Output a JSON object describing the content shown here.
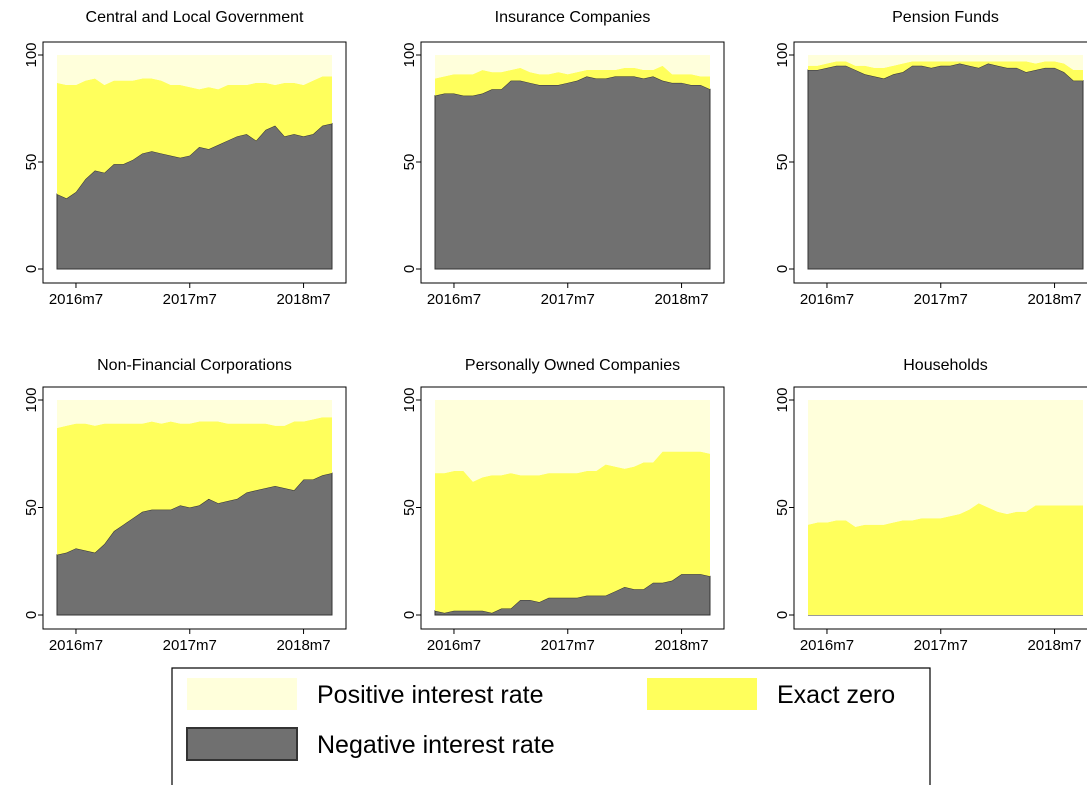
{
  "chart_data": [
    {
      "type": "stacked_area",
      "title": "Central and Local Government",
      "categories": [
        null,
        null,
        "2016m7",
        null,
        null,
        null,
        null,
        null,
        null,
        null,
        null,
        null,
        null,
        null,
        "2017m7",
        null,
        null,
        null,
        null,
        null,
        null,
        null,
        null,
        null,
        null,
        null,
        "2018m7",
        null,
        null,
        null
      ],
      "ylim": [
        0,
        100
      ],
      "yticks": [
        0,
        50,
        100
      ],
      "series": [
        {
          "name": "Negative interest rate",
          "color": "#707070",
          "values": [
            35,
            33,
            36,
            42,
            46,
            45,
            49,
            49,
            51,
            54,
            55,
            54,
            53,
            52,
            53,
            57,
            56,
            58,
            60,
            62,
            63,
            60,
            65,
            67,
            62,
            63,
            62,
            63,
            67,
            68
          ]
        },
        {
          "name": "Exact zero",
          "color": "#ffff5c",
          "values": [
            52,
            53,
            50,
            46,
            43,
            41,
            39,
            39,
            37,
            35,
            34,
            34,
            33,
            34,
            32,
            27,
            29,
            26,
            26,
            24,
            23,
            27,
            22,
            19,
            25,
            24,
            24,
            25,
            23,
            22
          ]
        },
        {
          "name": "Positive interest rate",
          "color": "#ffffdb",
          "values": [
            13,
            14,
            14,
            12,
            11,
            14,
            12,
            12,
            12,
            11,
            11,
            12,
            14,
            14,
            15,
            16,
            15,
            16,
            14,
            14,
            14,
            13,
            13,
            14,
            13,
            13,
            14,
            12,
            10,
            10
          ]
        }
      ]
    },
    {
      "type": "stacked_area",
      "title": "Insurance Companies",
      "categories": [
        null,
        null,
        "2016m7",
        null,
        null,
        null,
        null,
        null,
        null,
        null,
        null,
        null,
        null,
        null,
        "2017m7",
        null,
        null,
        null,
        null,
        null,
        null,
        null,
        null,
        null,
        null,
        null,
        "2018m7",
        null,
        null,
        null
      ],
      "ylim": [
        0,
        100
      ],
      "yticks": [
        0,
        50,
        100
      ],
      "series": [
        {
          "name": "Negative interest rate",
          "color": "#707070",
          "values": [
            81,
            82,
            82,
            81,
            81,
            82,
            84,
            84,
            88,
            88,
            87,
            86,
            86,
            86,
            87,
            88,
            90,
            89,
            89,
            90,
            90,
            90,
            89,
            90,
            88,
            87,
            87,
            86,
            86,
            84
          ]
        },
        {
          "name": "Exact zero",
          "color": "#ffff5c",
          "values": [
            8,
            8,
            9,
            10,
            10,
            11,
            8,
            8,
            5,
            6,
            5,
            5,
            5,
            6,
            4,
            4,
            3,
            4,
            4,
            3,
            4,
            4,
            4,
            3,
            7,
            4,
            4,
            5,
            4,
            6
          ]
        },
        {
          "name": "Positive interest rate",
          "color": "#ffffdb",
          "values": [
            11,
            10,
            9,
            9,
            9,
            7,
            8,
            8,
            7,
            6,
            8,
            9,
            9,
            8,
            9,
            8,
            7,
            7,
            7,
            7,
            6,
            6,
            7,
            7,
            5,
            9,
            9,
            9,
            10,
            10
          ]
        }
      ]
    },
    {
      "type": "stacked_area",
      "title": "Pension Funds",
      "categories": [
        null,
        null,
        "2016m7",
        null,
        null,
        null,
        null,
        null,
        null,
        null,
        null,
        null,
        null,
        null,
        "2017m7",
        null,
        null,
        null,
        null,
        null,
        null,
        null,
        null,
        null,
        null,
        null,
        "2018m7",
        null,
        null,
        null
      ],
      "ylim": [
        0,
        100
      ],
      "yticks": [
        0,
        50,
        100
      ],
      "series": [
        {
          "name": "Negative interest rate",
          "color": "#707070",
          "values": [
            93,
            93,
            94,
            95,
            95,
            93,
            91,
            90,
            89,
            91,
            92,
            95,
            95,
            94,
            95,
            95,
            96,
            95,
            94,
            96,
            95,
            94,
            94,
            92,
            93,
            94,
            94,
            92,
            88,
            88
          ]
        },
        {
          "name": "Exact zero",
          "color": "#ffff5c",
          "values": [
            2,
            2,
            2,
            2,
            2,
            2,
            4,
            4,
            5,
            4,
            4,
            2,
            2,
            3,
            2,
            2,
            1,
            2,
            3,
            1,
            2,
            3,
            3,
            5,
            3,
            3,
            3,
            4,
            5,
            5
          ]
        },
        {
          "name": "Positive interest rate",
          "color": "#ffffdb",
          "values": [
            5,
            5,
            4,
            3,
            3,
            5,
            5,
            6,
            6,
            5,
            4,
            3,
            3,
            3,
            3,
            3,
            3,
            3,
            3,
            3,
            3,
            3,
            3,
            3,
            4,
            3,
            3,
            4,
            7,
            7
          ]
        }
      ]
    },
    {
      "type": "stacked_area",
      "title": "Non-Financial Corporations",
      "categories": [
        null,
        null,
        "2016m7",
        null,
        null,
        null,
        null,
        null,
        null,
        null,
        null,
        null,
        null,
        null,
        "2017m7",
        null,
        null,
        null,
        null,
        null,
        null,
        null,
        null,
        null,
        null,
        null,
        "2018m7",
        null,
        null,
        null
      ],
      "ylim": [
        0,
        100
      ],
      "yticks": [
        0,
        50,
        100
      ],
      "series": [
        {
          "name": "Negative interest rate",
          "color": "#707070",
          "values": [
            28,
            29,
            31,
            30,
            29,
            33,
            39,
            42,
            45,
            48,
            49,
            49,
            49,
            51,
            50,
            51,
            54,
            52,
            53,
            54,
            57,
            58,
            59,
            60,
            59,
            58,
            63,
            63,
            65,
            66
          ]
        },
        {
          "name": "Exact zero",
          "color": "#ffff5c",
          "values": [
            59,
            59,
            58,
            59,
            59,
            56,
            50,
            47,
            44,
            41,
            41,
            40,
            41,
            38,
            39,
            39,
            36,
            38,
            36,
            35,
            32,
            31,
            30,
            28,
            29,
            32,
            27,
            28,
            27,
            26
          ]
        },
        {
          "name": "Positive interest rate",
          "color": "#ffffdb",
          "values": [
            13,
            12,
            11,
            11,
            12,
            11,
            11,
            11,
            11,
            11,
            10,
            11,
            10,
            11,
            11,
            10,
            10,
            10,
            11,
            11,
            11,
            11,
            11,
            12,
            12,
            10,
            10,
            9,
            8,
            8
          ]
        }
      ]
    },
    {
      "type": "stacked_area",
      "title": "Personally Owned Companies",
      "categories": [
        null,
        null,
        "2016m7",
        null,
        null,
        null,
        null,
        null,
        null,
        null,
        null,
        null,
        null,
        null,
        "2017m7",
        null,
        null,
        null,
        null,
        null,
        null,
        null,
        null,
        null,
        null,
        null,
        "2018m7",
        null,
        null,
        null
      ],
      "ylim": [
        0,
        100
      ],
      "yticks": [
        0,
        50,
        100
      ],
      "series": [
        {
          "name": "Negative interest rate",
          "color": "#707070",
          "values": [
            2,
            1,
            2,
            2,
            2,
            2,
            1,
            3,
            3,
            7,
            7,
            6,
            8,
            8,
            8,
            8,
            9,
            9,
            9,
            11,
            13,
            12,
            12,
            15,
            15,
            16,
            19,
            19,
            19,
            18
          ]
        },
        {
          "name": "Exact zero",
          "color": "#ffff5c",
          "values": [
            64,
            65,
            65,
            65,
            60,
            62,
            64,
            62,
            63,
            58,
            58,
            59,
            58,
            58,
            58,
            58,
            58,
            58,
            61,
            58,
            55,
            57,
            59,
            56,
            61,
            60,
            57,
            57,
            57,
            57
          ]
        },
        {
          "name": "Positive interest rate",
          "color": "#ffffdb",
          "values": [
            34,
            34,
            33,
            33,
            38,
            36,
            35,
            35,
            34,
            35,
            35,
            35,
            34,
            34,
            34,
            34,
            33,
            33,
            30,
            31,
            32,
            31,
            29,
            29,
            24,
            24,
            24,
            24,
            24,
            25
          ]
        }
      ]
    },
    {
      "type": "stacked_area",
      "title": "Households",
      "categories": [
        null,
        null,
        "2016m7",
        null,
        null,
        null,
        null,
        null,
        null,
        null,
        null,
        null,
        null,
        null,
        "2017m7",
        null,
        null,
        null,
        null,
        null,
        null,
        null,
        null,
        null,
        null,
        null,
        "2018m7",
        null,
        null,
        null
      ],
      "ylim": [
        0,
        100
      ],
      "yticks": [
        0,
        50,
        100
      ],
      "series": [
        {
          "name": "Negative interest rate",
          "color": "#707070",
          "values": [
            0,
            0,
            0,
            0,
            0,
            0,
            0,
            0,
            0,
            0,
            0,
            0,
            0,
            0,
            0,
            0,
            0,
            0,
            0,
            0,
            0,
            0,
            0,
            0,
            0,
            0,
            0,
            0,
            0,
            0
          ]
        },
        {
          "name": "Exact zero",
          "color": "#ffff5c",
          "values": [
            42,
            43,
            43,
            44,
            44,
            41,
            42,
            42,
            42,
            43,
            44,
            44,
            45,
            45,
            45,
            46,
            47,
            49,
            52,
            50,
            48,
            47,
            48,
            48,
            51,
            51,
            51,
            51,
            51,
            51
          ]
        },
        {
          "name": "Positive interest rate",
          "color": "#ffffdb",
          "values": [
            58,
            57,
            57,
            56,
            56,
            59,
            58,
            58,
            58,
            57,
            56,
            56,
            55,
            55,
            55,
            54,
            53,
            51,
            48,
            50,
            52,
            53,
            52,
            52,
            49,
            49,
            49,
            49,
            49,
            49
          ]
        }
      ]
    }
  ]
}
